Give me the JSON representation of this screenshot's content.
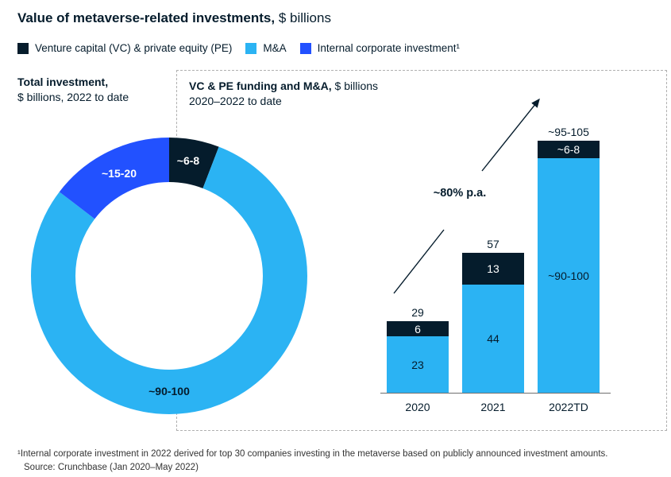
{
  "title": {
    "bold": "Value of metaverse-related investments,",
    "regular": " $ billions"
  },
  "legend": {
    "items": [
      {
        "label": "Venture capital (VC) & private equity (PE)",
        "color": "#051C2C"
      },
      {
        "label": "M&A",
        "color": "#2BB3F3"
      },
      {
        "label": "Internal corporate investment¹",
        "color": "#2251FF"
      }
    ]
  },
  "donut_section": {
    "heading_bold": "Total investment,",
    "heading_sub": "$ billions, 2022 to date"
  },
  "bar_section": {
    "heading_bold": "VC & PE funding and M&A,",
    "heading_regular": " $ billions",
    "heading_sub": "2020–2022 to date"
  },
  "footnote": "¹Internal corporate investment in 2022 derived for top 30 companies investing in the metaverse based on publicly announced investment amounts.",
  "source": "Source: Crunchbase (Jan 2020–May 2022)",
  "chart_data": [
    {
      "type": "pie",
      "subtype": "donut",
      "title": "Total investment, $ billions, 2022 to date",
      "start_angle": "top",
      "direction": "clockwise",
      "segments": [
        {
          "name": "VC & PE",
          "label": "~6-8",
          "value": 7,
          "color": "#051C2C",
          "label_color": "#ffffff"
        },
        {
          "name": "M&A",
          "label": "~90-100",
          "value": 95,
          "color": "#2BB3F3",
          "label_color": "#051C2C"
        },
        {
          "name": "Internal corporate investment",
          "label": "~15-20",
          "value": 17.5,
          "color": "#2251FF",
          "label_color": "#ffffff"
        }
      ]
    },
    {
      "type": "bar",
      "stacked": true,
      "title": "VC & PE funding and M&A, $ billions, 2020–2022 to date",
      "categories": [
        "2020",
        "2021",
        "2022TD"
      ],
      "series": [
        {
          "name": "M&A",
          "color": "#2BB3F3",
          "values": [
            23,
            44,
            95
          ],
          "labels": [
            "23",
            "44",
            "~90-100"
          ]
        },
        {
          "name": "VC & PE",
          "color": "#051C2C",
          "values": [
            6,
            13,
            7
          ],
          "labels": [
            "6",
            "13",
            "~6-8"
          ]
        }
      ],
      "totals": [
        "29",
        "57",
        "~95-105"
      ],
      "annotation": "~80% p.a.",
      "ylim": [
        0,
        110
      ],
      "grid": false
    }
  ]
}
